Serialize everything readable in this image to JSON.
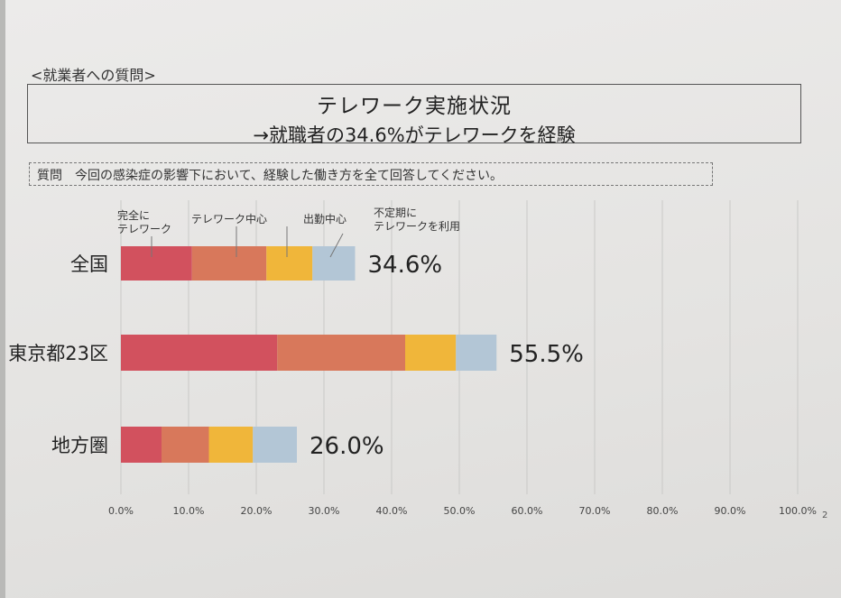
{
  "header": {
    "label": "<就業者への質問>"
  },
  "title": {
    "main": "テレワーク実施状況",
    "sub": "→就職者の34.6%がテレワークを経験"
  },
  "question": "質問　今回の感染症の影響下において、経験した働き方を全て回答してください。",
  "page_number": "2",
  "chart_data": {
    "type": "bar",
    "orientation": "horizontal",
    "stacked": true,
    "title": "テレワーク実施状況",
    "xlim": [
      0,
      100
    ],
    "x_ticks": [
      "0.0%",
      "10.0%",
      "20.0%",
      "30.0%",
      "40.0%",
      "50.0%",
      "60.0%",
      "70.0%",
      "80.0%",
      "90.0%",
      "100.0%"
    ],
    "grid": true,
    "categories": [
      "全国",
      "東京都23区",
      "地方圏"
    ],
    "series": [
      {
        "name": "完全にテレワーク",
        "name_lines": [
          "完全に",
          "テレワーク"
        ],
        "color": "#d2515e",
        "values": [
          10.5,
          23.1,
          6.0
        ]
      },
      {
        "name": "テレワーク中心",
        "name_lines": [
          "テレワーク中心"
        ],
        "color": "#d8785b",
        "values": [
          11.0,
          18.9,
          7.0
        ]
      },
      {
        "name": "出勤中心",
        "name_lines": [
          "出勤中心"
        ],
        "color": "#f0b63a",
        "values": [
          6.8,
          7.5,
          6.5
        ]
      },
      {
        "name": "不定期にテレワークを利用",
        "name_lines": [
          "不定期に",
          "テレワークを利用"
        ],
        "color": "#b3c6d6",
        "values": [
          6.3,
          6.0,
          6.5
        ]
      }
    ],
    "totals": [
      34.6,
      55.5,
      26.0
    ],
    "total_labels": [
      "34.6%",
      "55.5%",
      "26.0%"
    ],
    "legend_placement": "top, callouts above first bar"
  }
}
